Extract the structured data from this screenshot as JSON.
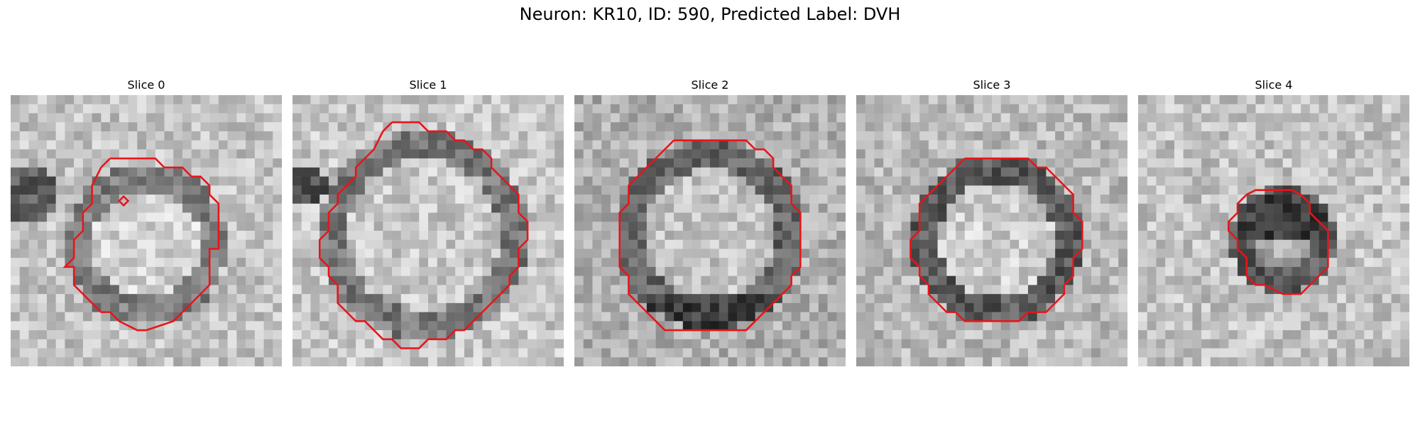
{
  "figure": {
    "title": "Neuron: KR10, ID: 590, Predicted Label: DVH"
  },
  "panels": [
    {
      "title": "Slice 0"
    },
    {
      "title": "Slice 1"
    },
    {
      "title": "Slice 2"
    },
    {
      "title": "Slice 3"
    },
    {
      "title": "Slice 4"
    }
  ],
  "colors": {
    "contour": "#e8141a",
    "background": "#ffffff"
  }
}
